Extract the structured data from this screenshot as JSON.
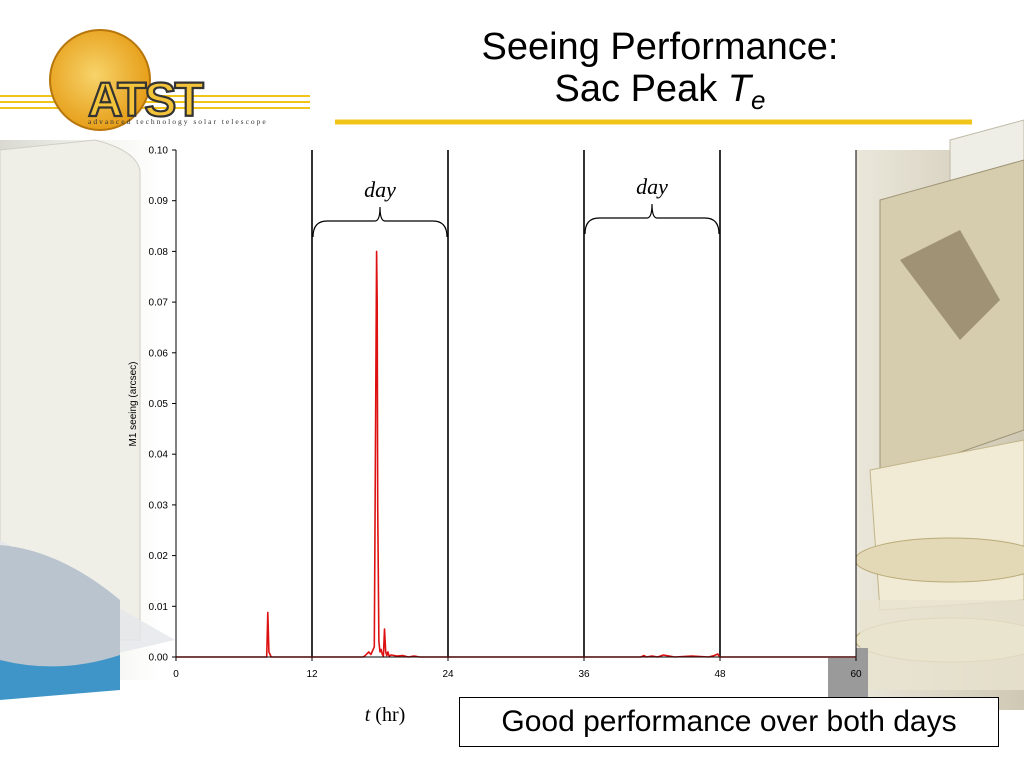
{
  "slide": {
    "title_line1": "Seeing Performance:",
    "title_line2_text": "Sac Peak ",
    "title_line2_var": "T",
    "title_line2_sub": "e",
    "logo_text": "ATST",
    "logo_tagline": "advanced technology solar telescope",
    "callout": "Good performance over both days",
    "colors": {
      "gold": "#f0c419",
      "logo_ring": "#e8a417",
      "series": "#dd1111"
    }
  },
  "chart_data": {
    "type": "line",
    "title": "",
    "xlabel_var": "t",
    "xlabel_unit": " (hr)",
    "ylabel": "M1 seeing (arcsec)",
    "xlim": [
      0,
      60
    ],
    "ylim": [
      0,
      0.1
    ],
    "xticks": [
      "0",
      "12",
      "24",
      "36",
      "48",
      "60"
    ],
    "yticks": [
      "0.00",
      "0.01",
      "0.02",
      "0.03",
      "0.04",
      "0.05",
      "0.06",
      "0.07",
      "0.08",
      "0.09",
      "0.10"
    ],
    "vertical_lines": [
      12,
      24,
      36,
      48
    ],
    "day_annotations": [
      {
        "label": "day",
        "from": 12,
        "to": 24
      },
      {
        "label": "day",
        "from": 36,
        "to": 48
      }
    ],
    "grid": false,
    "series": [
      {
        "color": "#dd1111",
        "x": [
          0,
          8.0,
          8.1,
          8.2,
          8.3,
          8.4,
          16.5,
          16.7,
          17.0,
          17.2,
          17.5,
          17.6,
          17.7,
          17.75,
          17.8,
          17.9,
          18.0,
          18.1,
          18.2,
          18.3,
          18.4,
          18.5,
          18.6,
          18.7,
          18.8,
          19.0,
          19.5,
          20.0,
          20.5,
          21.0,
          21.5,
          22.0,
          24.0,
          36.0,
          41.0,
          41.3,
          41.5,
          42.0,
          42.5,
          43.0,
          44.0,
          45.5,
          47.0,
          47.5,
          47.8,
          48.0,
          60.0
        ],
        "y": [
          0,
          0,
          0.0088,
          0.001,
          0.0005,
          0,
          0,
          0.0003,
          0.001,
          0.0005,
          0.002,
          0.043,
          0.08,
          0.07,
          0.03,
          0.003,
          0.001,
          0.0015,
          0.0005,
          0.0002,
          0.0055,
          0.001,
          0.0003,
          0.001,
          0.0002,
          0.0004,
          0.0002,
          0.0003,
          0,
          0.0002,
          0,
          0,
          0,
          0,
          0,
          0.0003,
          0,
          0.0002,
          0,
          0.0004,
          0,
          0.0002,
          0,
          0.0003,
          0.0006,
          0,
          0
        ]
      }
    ]
  }
}
